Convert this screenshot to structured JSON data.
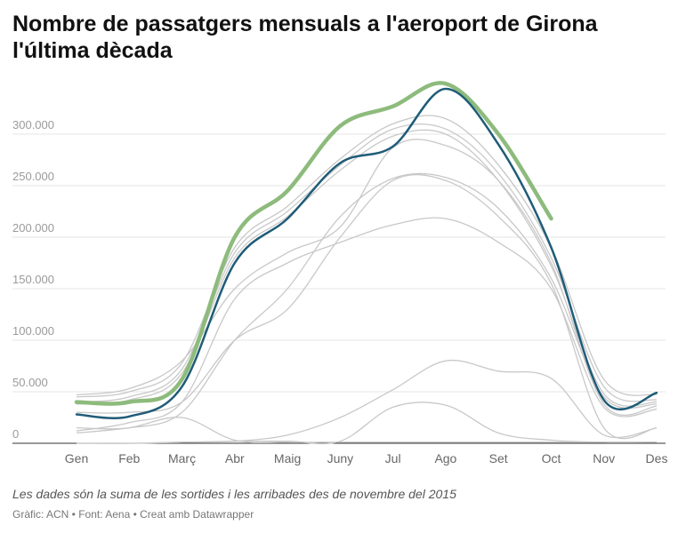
{
  "title": "Nombre de passatgers mensuals a l'aeroport de Girona l'última dècada",
  "note": "Les dades són la suma de les sortides i les arribades des de novembre del 2015",
  "credit": "Gràfic: ACN • Font: Aena • Creat amb Datawrapper",
  "chart_data": {
    "type": "line",
    "title": "Nombre de passatgers mensuals a l'aeroport de Girona l'última dècada",
    "xlabel": "",
    "ylabel": "",
    "categories": [
      "Gen",
      "Feb",
      "Març",
      "Abr",
      "Maig",
      "Juny",
      "Jul",
      "Ago",
      "Set",
      "Oct",
      "Nov",
      "Des"
    ],
    "yticks": [
      0,
      50000,
      100000,
      150000,
      200000,
      250000,
      300000
    ],
    "ytick_labels": [
      "0",
      "50.000",
      "100.000",
      "150.000",
      "200.000",
      "250.000",
      "300.000"
    ],
    "ylim": [
      0,
      350000
    ],
    "grid": true,
    "colors": {
      "highlight_green": "#8dbb7c",
      "highlight_blue": "#1f5c78",
      "background": "#c8c8c8",
      "grid": "#e6e6e6"
    },
    "series": [
      {
        "style": "green",
        "values": [
          40000,
          40000,
          62000,
          200000,
          245000,
          308000,
          327000,
          349000,
          300000,
          218000,
          null,
          null
        ]
      },
      {
        "style": "blue",
        "values": [
          28000,
          26000,
          55000,
          175000,
          218000,
          272000,
          288000,
          344000,
          290000,
          190000,
          42000,
          49000
        ]
      },
      {
        "style": "grey",
        "values": [
          45000,
          50000,
          78000,
          190000,
          230000,
          276000,
          310000,
          315000,
          270000,
          190000,
          62000,
          47000
        ]
      },
      {
        "style": "grey",
        "values": [
          40000,
          45000,
          72000,
          185000,
          225000,
          270000,
          305000,
          305000,
          262000,
          180000,
          55000,
          42000
        ]
      },
      {
        "style": "grey",
        "values": [
          38000,
          42000,
          68000,
          180000,
          220000,
          265000,
          298000,
          300000,
          255000,
          172000,
          48000,
          40000
        ]
      },
      {
        "style": "grey",
        "values": [
          47000,
          53000,
          80000,
          150000,
          185000,
          210000,
          287000,
          289000,
          255000,
          175000,
          38000,
          36000
        ]
      },
      {
        "style": "grey",
        "values": [
          12000,
          20000,
          40000,
          140000,
          175000,
          195000,
          212000,
          218000,
          195000,
          150000,
          35000,
          33000
        ]
      },
      {
        "style": "grey",
        "values": [
          15000,
          15000,
          30000,
          100000,
          150000,
          220000,
          257000,
          258000,
          228000,
          160000,
          45000,
          38000
        ]
      },
      {
        "style": "grey",
        "values": [
          30000,
          30000,
          40000,
          100000,
          130000,
          200000,
          255000,
          255000,
          220000,
          155000,
          15000,
          15000
        ]
      },
      {
        "style": "grey",
        "values": [
          0,
          0,
          1000,
          2000,
          8000,
          25000,
          52000,
          80000,
          70000,
          63000,
          8000,
          15000
        ]
      },
      {
        "style": "grey",
        "values": [
          0,
          0,
          1000,
          2000,
          2000,
          2000,
          35000,
          37000,
          10000,
          3000,
          1000,
          1000
        ]
      },
      {
        "style": "grey",
        "values": [
          10000,
          15000,
          25000,
          3000,
          1000,
          1000,
          1000,
          1000,
          1000,
          1000,
          1000,
          1000
        ]
      }
    ]
  }
}
